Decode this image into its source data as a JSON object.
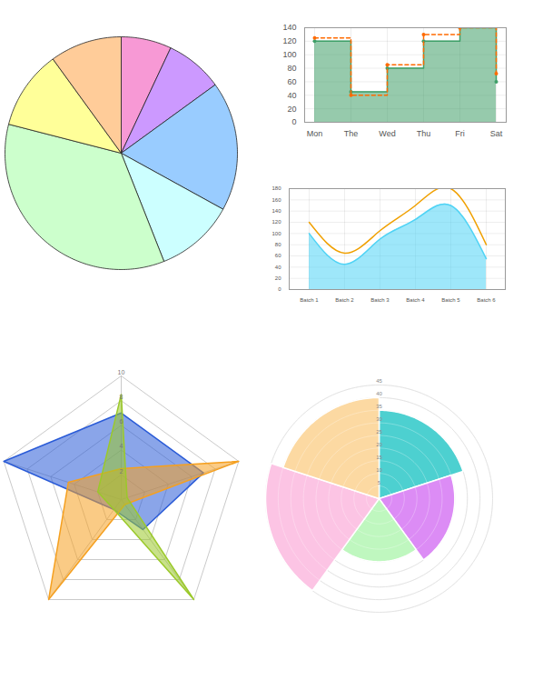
{
  "chart_data": [
    {
      "type": "pie",
      "values": [
        7,
        8,
        18,
        11,
        35,
        11,
        10
      ],
      "colors": [
        "#f799d5",
        "#cc99ff",
        "#99ccff",
        "#ccffff",
        "#ccffcc",
        "#ffff99",
        "#ffcc99"
      ]
    },
    {
      "type": "step",
      "categories": [
        "Mon",
        "The",
        "Wed",
        "Thu",
        "Fri",
        "Sat"
      ],
      "series": [
        {
          "type": "area",
          "color": "#3f9f68",
          "line_style": "solid",
          "marker": "circle",
          "values": [
            120,
            45,
            80,
            120,
            140,
            60
          ]
        },
        {
          "type": "line",
          "color": "#ff6a00",
          "line_style": "dashed",
          "marker": "circle",
          "values": [
            125,
            40,
            85,
            130,
            140,
            72
          ]
        }
      ],
      "ylim": [
        0,
        140
      ],
      "yticks": [
        0,
        20,
        40,
        60,
        80,
        100,
        120,
        140
      ],
      "grid": true
    },
    {
      "type": "line",
      "categories": [
        "Batch 1",
        "Batch 2",
        "Batch 3",
        "Batch 4",
        "Batch 5",
        "Batch 6"
      ],
      "series": [
        {
          "type": "area",
          "color": "#4fd3f5",
          "line_style": "smooth",
          "values": [
            100,
            45,
            90,
            125,
            150,
            55
          ]
        },
        {
          "type": "line",
          "color": "#f0a000",
          "line_style": "smooth",
          "values": [
            120,
            65,
            105,
            150,
            180,
            80
          ]
        }
      ],
      "ylim": [
        0,
        180
      ],
      "yticks": [
        0,
        20,
        40,
        60,
        80,
        100,
        120,
        140,
        160,
        180
      ],
      "grid": true
    },
    {
      "type": "radar",
      "ylim": [
        0,
        10
      ],
      "yticks": [
        2,
        4,
        6,
        8,
        10
      ],
      "series": [
        {
          "color": "#2a5bd7",
          "values": [
            7,
            7,
            3,
            1,
            10
          ]
        },
        {
          "color": "#f5a020",
          "values": [
            2.5,
            10,
            0.5,
            10,
            4.5
          ]
        },
        {
          "color": "#9bc92a",
          "values": [
            8.5,
            0.5,
            10,
            1,
            2
          ]
        }
      ]
    },
    {
      "type": "polar_area",
      "values": [
        35,
        30,
        25,
        45,
        40
      ],
      "colors": [
        "#4dd0d0",
        "#dc8cf5",
        "#bff7bf",
        "#fcc4e4",
        "#fcd9a2"
      ],
      "ylim": [
        0,
        45
      ],
      "yticks": [
        5,
        10,
        15,
        20,
        25,
        30,
        35,
        40,
        45
      ]
    }
  ]
}
